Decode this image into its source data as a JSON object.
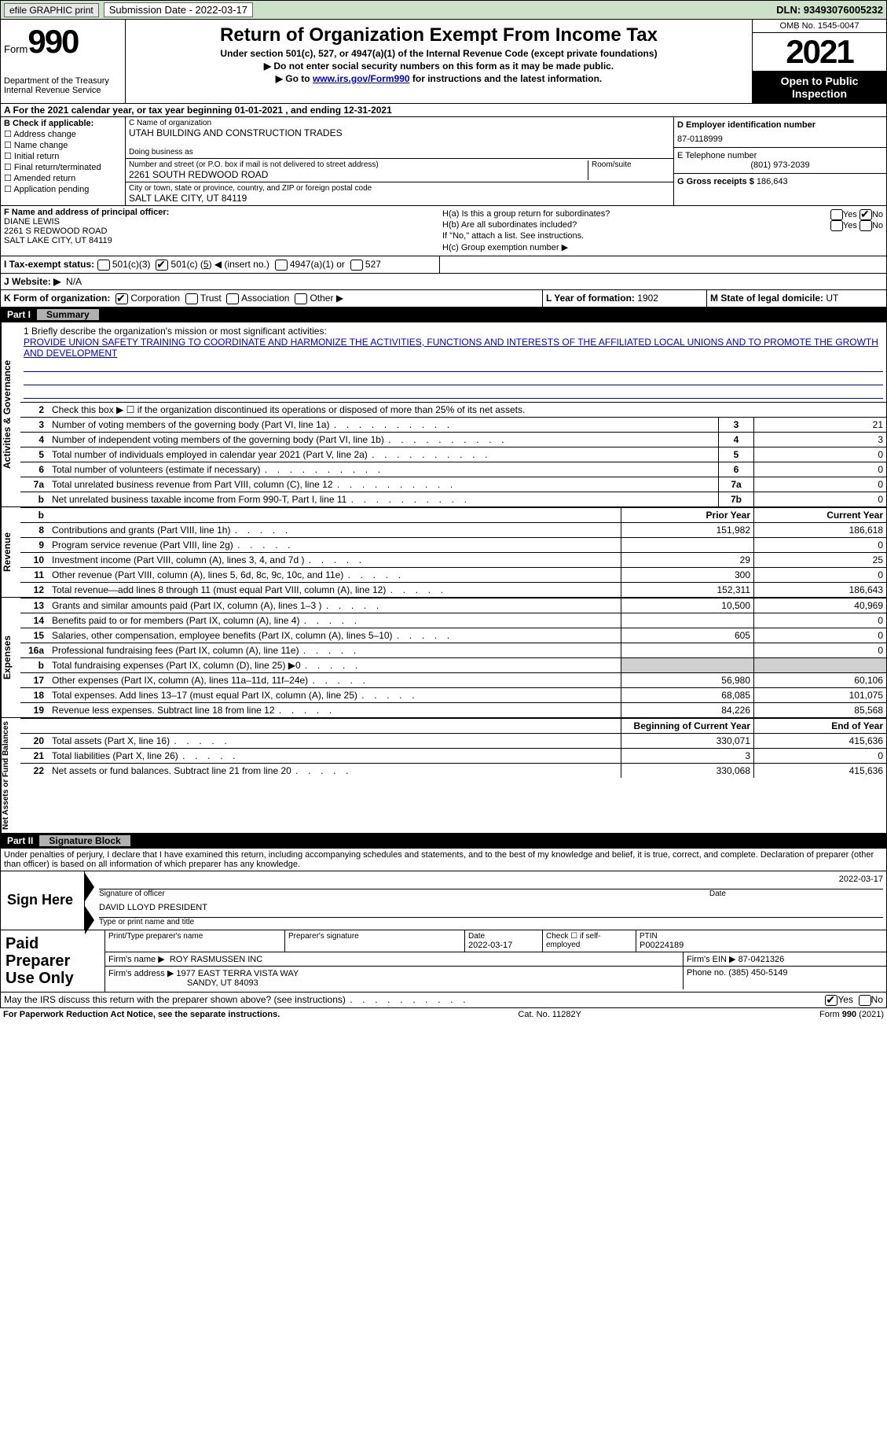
{
  "colors": {
    "topbar_bg": "#cde1c9",
    "link": "#0000cc",
    "black": "#000000",
    "grey_header": "#b0b0b0",
    "grey_cell": "#d0d0d0"
  },
  "topbar": {
    "efile": "efile GRAPHIC print",
    "sub_label": "Submission Date - 2022-03-17",
    "dln": "DLN: 93493076005232"
  },
  "header": {
    "form_word": "Form",
    "form_num": "990",
    "title": "Return of Organization Exempt From Income Tax",
    "subtitle": "Under section 501(c), 527, or 4947(a)(1) of the Internal Revenue Code (except private foundations)",
    "line1": "▶ Do not enter social security numbers on this form as it may be made public.",
    "line2_pre": "▶ Go to ",
    "line2_link": "www.irs.gov/Form990",
    "line2_post": " for instructions and the latest information.",
    "dept": "Department of the Treasury",
    "irs": "Internal Revenue Service",
    "omb": "OMB No. 1545-0047",
    "year": "2021",
    "open": "Open to Public Inspection"
  },
  "row_a": "A For the 2021 calendar year, or tax year beginning 01-01-2021   , and ending 12-31-2021",
  "box_b": {
    "title": "B Check if applicable:",
    "items": [
      "Address change",
      "Name change",
      "Initial return",
      "Final return/terminated",
      "Amended return",
      "Application pending"
    ]
  },
  "box_c": {
    "name_label": "C Name of organization",
    "name": "UTAH BUILDING AND CONSTRUCTION TRADES",
    "dba_label": "Doing business as",
    "addr_label": "Number and street (or P.O. box if mail is not delivered to street address)",
    "room_label": "Room/suite",
    "addr": "2261 SOUTH REDWOOD ROAD",
    "city_label": "City or town, state or province, country, and ZIP or foreign postal code",
    "city": "SALT LAKE CITY, UT  84119"
  },
  "box_d": {
    "ein_label": "D Employer identification number",
    "ein": "87-0118999",
    "tel_label": "E Telephone number",
    "tel": "(801) 973-2039",
    "gross_label": "G Gross receipts $",
    "gross": "186,643"
  },
  "box_f": {
    "label": "F Name and address of principal officer:",
    "name": "DIANE LEWIS",
    "addr1": "2261 S REDWOOD ROAD",
    "addr2": "SALT LAKE CITY, UT  84119"
  },
  "box_h": {
    "a": "H(a)  Is this a group return for subordinates?",
    "b": "H(b)  Are all subordinates included?",
    "b_note": "If \"No,\" attach a list. See instructions.",
    "c": "H(c)  Group exemption number ▶",
    "yes": "Yes",
    "no": "No"
  },
  "row_i": {
    "label": "I   Tax-exempt status:",
    "opt1": "501(c)(3)",
    "opt2_pre": "501(c) (",
    "opt2_num": "5",
    "opt2_post": ") ◀ (insert no.)",
    "opt3": "4947(a)(1) or",
    "opt4": "527"
  },
  "row_j": {
    "label": "J   Website: ▶",
    "val": "N/A"
  },
  "row_k": {
    "k1_label": "K Form of organization:",
    "opts": [
      "Corporation",
      "Trust",
      "Association",
      "Other ▶"
    ],
    "k2_label": "L Year of formation:",
    "k2_val": "1902",
    "k3_label": "M State of legal domicile:",
    "k3_val": "UT"
  },
  "part1": {
    "num": "Part I",
    "title": "Summary"
  },
  "mission": {
    "label": "1   Briefly describe the organization's mission or most significant activities:",
    "text": "PROVIDE UNION SAFETY TRAINING TO COORDINATE AND HARMONIZE THE ACTIVITIES, FUNCTIONS AND INTERESTS OF THE AFFILIATED LOCAL UNIONS AND TO PROMOTE THE GROWTH AND DEVELOPMENT"
  },
  "line2": "Check this box ▶ ☐  if the organization discontinued its operations or disposed of more than 25% of its net assets.",
  "gov_table": {
    "vtab": "Activities & Governance",
    "rows": [
      {
        "n": "3",
        "d": "Number of voting members of the governing body (Part VI, line 1a)",
        "box": "3",
        "v": "21"
      },
      {
        "n": "4",
        "d": "Number of independent voting members of the governing body (Part VI, line 1b)",
        "box": "4",
        "v": "3"
      },
      {
        "n": "5",
        "d": "Total number of individuals employed in calendar year 2021 (Part V, line 2a)",
        "box": "5",
        "v": "0"
      },
      {
        "n": "6",
        "d": "Total number of volunteers (estimate if necessary)",
        "box": "6",
        "v": "0"
      },
      {
        "n": "7a",
        "d": "Total unrelated business revenue from Part VIII, column (C), line 12",
        "box": "7a",
        "v": "0"
      },
      {
        "n": "b",
        "d": "Net unrelated business taxable income from Form 990-T, Part I, line 11",
        "box": "7b",
        "v": "0"
      }
    ]
  },
  "fin_header": {
    "prior": "Prior Year",
    "current": "Current Year"
  },
  "revenue": {
    "vtab": "Revenue",
    "rows": [
      {
        "n": "8",
        "d": "Contributions and grants (Part VIII, line 1h)",
        "p": "151,982",
        "c": "186,618"
      },
      {
        "n": "9",
        "d": "Program service revenue (Part VIII, line 2g)",
        "p": "",
        "c": "0"
      },
      {
        "n": "10",
        "d": "Investment income (Part VIII, column (A), lines 3, 4, and 7d )",
        "p": "29",
        "c": "25"
      },
      {
        "n": "11",
        "d": "Other revenue (Part VIII, column (A), lines 5, 6d, 8c, 9c, 10c, and 11e)",
        "p": "300",
        "c": "0"
      },
      {
        "n": "12",
        "d": "Total revenue—add lines 8 through 11 (must equal Part VIII, column (A), line 12)",
        "p": "152,311",
        "c": "186,643"
      }
    ]
  },
  "expenses": {
    "vtab": "Expenses",
    "rows": [
      {
        "n": "13",
        "d": "Grants and similar amounts paid (Part IX, column (A), lines 1–3 )",
        "p": "10,500",
        "c": "40,969"
      },
      {
        "n": "14",
        "d": "Benefits paid to or for members (Part IX, column (A), line 4)",
        "p": "",
        "c": "0"
      },
      {
        "n": "15",
        "d": "Salaries, other compensation, employee benefits (Part IX, column (A), lines 5–10)",
        "p": "605",
        "c": "0"
      },
      {
        "n": "16a",
        "d": "Professional fundraising fees (Part IX, column (A), line 11e)",
        "p": "",
        "c": "0"
      },
      {
        "n": "b",
        "d": "Total fundraising expenses (Part IX, column (D), line 25) ▶0",
        "p": "grey",
        "c": "grey"
      },
      {
        "n": "17",
        "d": "Other expenses (Part IX, column (A), lines 11a–11d, 11f–24e)",
        "p": "56,980",
        "c": "60,106"
      },
      {
        "n": "18",
        "d": "Total expenses. Add lines 13–17 (must equal Part IX, column (A), line 25)",
        "p": "68,085",
        "c": "101,075"
      },
      {
        "n": "19",
        "d": "Revenue less expenses. Subtract line 18 from line 12",
        "p": "84,226",
        "c": "85,568"
      }
    ]
  },
  "net_header": {
    "begin": "Beginning of Current Year",
    "end": "End of Year"
  },
  "netassets": {
    "vtab": "Net Assets or Fund Balances",
    "rows": [
      {
        "n": "20",
        "d": "Total assets (Part X, line 16)",
        "p": "330,071",
        "c": "415,636"
      },
      {
        "n": "21",
        "d": "Total liabilities (Part X, line 26)",
        "p": "3",
        "c": "0"
      },
      {
        "n": "22",
        "d": "Net assets or fund balances. Subtract line 21 from line 20",
        "p": "330,068",
        "c": "415,636"
      }
    ]
  },
  "part2": {
    "num": "Part II",
    "title": "Signature Block"
  },
  "sig": {
    "decl": "Under penalties of perjury, I declare that I have examined this return, including accompanying schedules and statements, and to the best of my knowledge and belief, it is true, correct, and complete. Declaration of preparer (other than officer) is based on all information of which preparer has any knowledge.",
    "sign_here": "Sign Here",
    "sig_label": "Signature of officer",
    "date_label": "Date",
    "sig_date": "2022-03-17",
    "name": "DAVID LLOYD PRESIDENT",
    "name_label": "Type or print name and title"
  },
  "paid": {
    "left": "Paid Preparer Use Only",
    "r1": {
      "c1_label": "Print/Type preparer's name",
      "c1": "",
      "c2_label": "Preparer's signature",
      "c2": "",
      "c3_label": "Date",
      "c3": "2022-03-17",
      "c4_label": "Check ☐ if self-employed",
      "c5_label": "PTIN",
      "c5": "P00224189"
    },
    "r2": {
      "label": "Firm's name    ▶",
      "val": "ROY RASMUSSEN INC",
      "ein_label": "Firm's EIN ▶",
      "ein": "87-0421326"
    },
    "r3": {
      "label": "Firm's address ▶",
      "val1": "1977 EAST TERRA VISTA WAY",
      "val2": "SANDY, UT  84093",
      "ph_label": "Phone no.",
      "ph": "(385) 450-5149"
    }
  },
  "discuss": {
    "text": "May the IRS discuss this return with the preparer shown above? (see instructions)",
    "yes": "Yes",
    "no": "No"
  },
  "footer": {
    "left": "For Paperwork Reduction Act Notice, see the separate instructions.",
    "mid": "Cat. No. 11282Y",
    "right": "Form 990 (2021)"
  }
}
